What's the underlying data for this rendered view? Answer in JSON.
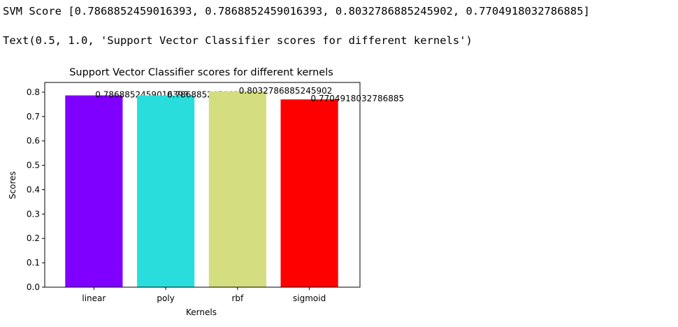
{
  "output": {
    "svm_score_line": "SVM Score [0.7868852459016393, 0.7868852459016393, 0.8032786885245902, 0.7704918032786885]",
    "text_repr_line": "Text(0.5, 1.0, 'Support Vector Classifier scores for different kernels')"
  },
  "chart_data": {
    "type": "bar",
    "title": "Support Vector Classifier scores for different kernels",
    "xlabel": "Kernels",
    "ylabel": "Scores",
    "categories": [
      "linear",
      "poly",
      "rbf",
      "sigmoid"
    ],
    "values": [
      0.7868852459016393,
      0.7868852459016393,
      0.8032786885245902,
      0.7704918032786885
    ],
    "value_labels": [
      "0.7868852459016393",
      "0.7868852459016393",
      "0.8032786885245902",
      "0.7704918032786885"
    ],
    "colors": [
      "#8000ff",
      "#2adddd",
      "#d4dd80",
      "#ff0000"
    ],
    "ylim": [
      0,
      0.84
    ],
    "yticks": [
      "0.0",
      "0.1",
      "0.2",
      "0.3",
      "0.4",
      "0.5",
      "0.6",
      "0.7",
      "0.8"
    ],
    "grid": false,
    "legend": "none"
  }
}
